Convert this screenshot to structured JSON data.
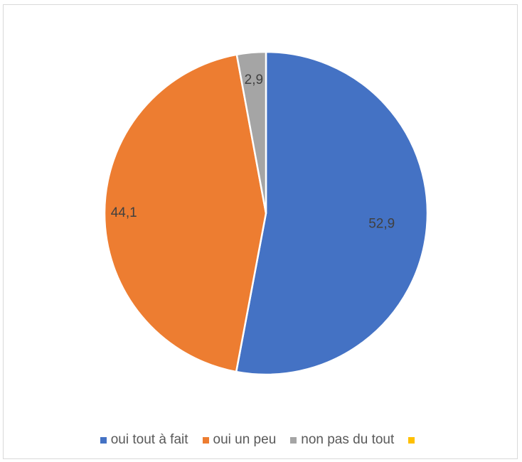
{
  "chart_data": {
    "type": "pie",
    "start_angle_deg": 0,
    "direction": "clockwise",
    "slices": [
      {
        "label": "oui tout à fait",
        "value": 52.9,
        "display": "52,9",
        "color": "#4472C4"
      },
      {
        "label": "oui un peu",
        "value": 44.1,
        "display": "44,1",
        "color": "#ED7D31"
      },
      {
        "label": "non pas du tout",
        "value": 2.9,
        "display": "2,9",
        "color": "#A5A5A5"
      },
      {
        "label": "",
        "value": 0,
        "display": "",
        "color": "#FFC000"
      }
    ],
    "legend": [
      {
        "label": "oui tout à fait",
        "color": "#4472C4"
      },
      {
        "label": "oui un peu",
        "color": "#ED7D31"
      },
      {
        "label": "non pas du tout",
        "color": "#A5A5A5"
      },
      {
        "label": "",
        "color": "#FFC000"
      }
    ],
    "legend_position": "bottom"
  }
}
